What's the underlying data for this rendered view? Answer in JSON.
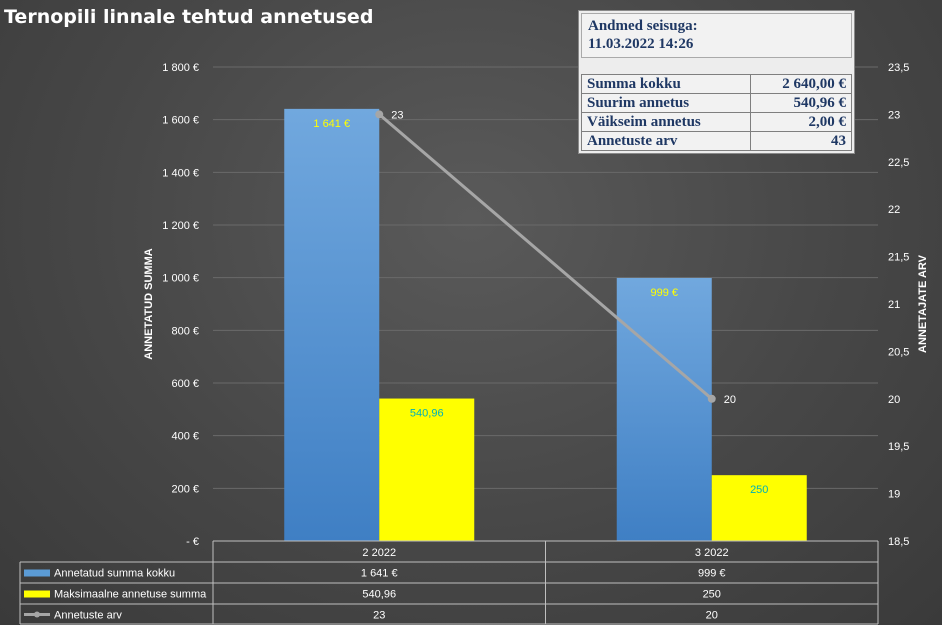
{
  "title": "Ternopili linnale tehtud annetused",
  "info_box": {
    "heading_line1": "Andmed seisuga:",
    "heading_line2": "11.03.2022 14:26",
    "rows": [
      {
        "label": "Summa kokku",
        "value": "2 640,00 €"
      },
      {
        "label": "Suurim annetus",
        "value": "540,96 €"
      },
      {
        "label": "Väikseim annetus",
        "value": "2,00 €"
      },
      {
        "label": "Annetuste arv",
        "value": "43"
      }
    ]
  },
  "chart_data": {
    "type": "bar",
    "categories": [
      "2 2022",
      "3 2022"
    ],
    "series": [
      {
        "name": "Annetatud summa kokku",
        "type": "bar",
        "axis": "left",
        "color": "#5b9bd5",
        "values": [
          1641,
          999
        ],
        "labels": [
          "1 641 €",
          "999 €"
        ],
        "table_values": [
          "1 641 €",
          "999 €"
        ]
      },
      {
        "name": "Maksimaalne annetuse summa",
        "type": "bar",
        "axis": "left",
        "color": "#ffff00",
        "values": [
          540.96,
          250
        ],
        "labels": [
          "540,96",
          "250"
        ],
        "table_values": [
          "540,96",
          "250"
        ]
      },
      {
        "name": "Annetuste arv",
        "type": "line",
        "axis": "right",
        "color": "#a6a6a6",
        "values": [
          23,
          20
        ],
        "labels": [
          "23",
          "20"
        ],
        "table_values": [
          "23",
          "20"
        ]
      }
    ],
    "ylabel": "ANNETATUD SUMMA",
    "y2label": "ANNETAJATE ARV",
    "ylim": [
      0,
      1800
    ],
    "y2lim": [
      18.5,
      23.5
    ],
    "yticks": [
      {
        "value": 0,
        "label": "-   €"
      },
      {
        "value": 200,
        "label": "200 €"
      },
      {
        "value": 400,
        "label": "400 €"
      },
      {
        "value": 600,
        "label": "600 €"
      },
      {
        "value": 800,
        "label": "800 €"
      },
      {
        "value": 1000,
        "label": "1 000 €"
      },
      {
        "value": 1200,
        "label": "1 200 €"
      },
      {
        "value": 1400,
        "label": "1 400 €"
      },
      {
        "value": 1600,
        "label": "1 600 €"
      },
      {
        "value": 1800,
        "label": "1 800 €"
      }
    ],
    "y2ticks": [
      {
        "value": 18.5,
        "label": "18,5"
      },
      {
        "value": 19,
        "label": "19"
      },
      {
        "value": 19.5,
        "label": "19,5"
      },
      {
        "value": 20,
        "label": "20"
      },
      {
        "value": 20.5,
        "label": "20,5"
      },
      {
        "value": 21,
        "label": "21"
      },
      {
        "value": 21.5,
        "label": "21,5"
      },
      {
        "value": 22,
        "label": "22"
      },
      {
        "value": 22.5,
        "label": "22,5"
      },
      {
        "value": 23,
        "label": "23"
      },
      {
        "value": 23.5,
        "label": "23,5"
      }
    ],
    "grid": true,
    "legend": "data-table-below"
  }
}
